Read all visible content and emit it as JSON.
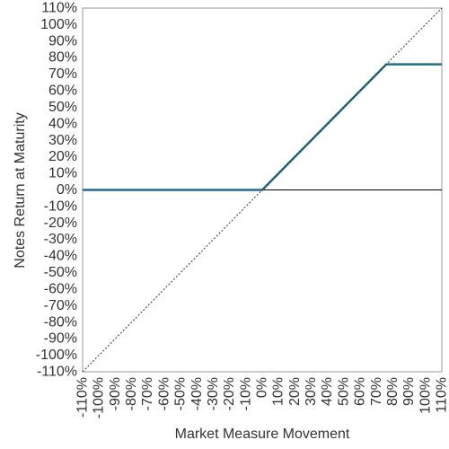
{
  "chart_data": {
    "type": "line",
    "xlabel": "Market Measure Movement",
    "ylabel": "Notes Return at Maturity",
    "xlim": [
      -110,
      110
    ],
    "ylim": [
      -110,
      110
    ],
    "x_ticks": [
      "-110%",
      "-100%",
      "-90%",
      "-80%",
      "-70%",
      "-60%",
      "-50%",
      "-40%",
      "-30%",
      "-20%",
      "-10%",
      "0%",
      "10%",
      "20%",
      "30%",
      "40%",
      "50%",
      "60%",
      "70%",
      "80%",
      "90%",
      "100%",
      "110%"
    ],
    "y_ticks": [
      "110%",
      "100%",
      "90%",
      "80%",
      "70%",
      "60%",
      "50%",
      "40%",
      "30%",
      "20%",
      "10%",
      "0%",
      "-10%",
      "-20%",
      "-30%",
      "-40%",
      "-50%",
      "-60%",
      "-70%",
      "-80%",
      "-90%",
      "-100%",
      "-110%"
    ],
    "grid": false,
    "series": [
      {
        "style": "solid",
        "color": "#1f6f87",
        "x": [
          -110,
          0,
          76,
          110
        ],
        "y": [
          0,
          0,
          76,
          76
        ]
      },
      {
        "style": "dotted",
        "color": "#333333",
        "x": [
          -110,
          110
        ],
        "y": [
          -110,
          110
        ]
      }
    ],
    "zero_line": {
      "y": 0,
      "color": "#000000"
    }
  }
}
